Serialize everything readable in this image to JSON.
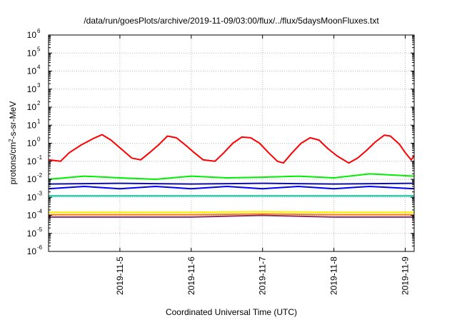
{
  "chart_data": {
    "type": "line",
    "title": "/data/run/goesPlots/archive/2019-11-09/03:00/flux/../flux/5daysMoonFluxes.txt",
    "xlabel": "Coordinated Universal Time (UTC)",
    "ylabel": "protons/cm2-s-sr-MeV",
    "yscale": "log",
    "ylim": [
      1e-06,
      1000000.0
    ],
    "xlim": [
      "2019-11-04T00:00",
      "2019-11-09T03:00"
    ],
    "y_ticks": [
      "10-6",
      "10-5",
      "10-4",
      "10-3",
      "10-2",
      "10-1",
      "100",
      "101",
      "102",
      "103",
      "104",
      "105",
      "106"
    ],
    "x_ticks": [
      "2019-11-5",
      "2019-11-6",
      "2019-11-7",
      "2019-11-8",
      "2019-11-9"
    ],
    "grid": true,
    "series": [
      {
        "color": "#ff0000",
        "values": [
          {
            "x": "2019-11-04T00:00",
            "y": 0.12
          },
          {
            "x": "2019-11-04T04:00",
            "y": 0.1
          },
          {
            "x": "2019-11-04T07:00",
            "y": 0.3
          },
          {
            "x": "2019-11-04T11:00",
            "y": 0.8
          },
          {
            "x": "2019-11-04T15:00",
            "y": 1.8
          },
          {
            "x": "2019-11-04T18:00",
            "y": 3.0
          },
          {
            "x": "2019-11-04T21:00",
            "y": 1.5
          },
          {
            "x": "2019-11-05T01:00",
            "y": 0.4
          },
          {
            "x": "2019-11-05T04:00",
            "y": 0.15
          },
          {
            "x": "2019-11-05T07:00",
            "y": 0.12
          },
          {
            "x": "2019-11-05T10:00",
            "y": 0.3
          },
          {
            "x": "2019-11-05T13:00",
            "y": 0.8
          },
          {
            "x": "2019-11-05T16:00",
            "y": 2.5
          },
          {
            "x": "2019-11-05T19:00",
            "y": 2.0
          },
          {
            "x": "2019-11-05T22:00",
            "y": 0.8
          },
          {
            "x": "2019-11-06T01:00",
            "y": 0.3
          },
          {
            "x": "2019-11-06T04:00",
            "y": 0.12
          },
          {
            "x": "2019-11-06T08:00",
            "y": 0.1
          },
          {
            "x": "2019-11-06T11:00",
            "y": 0.3
          },
          {
            "x": "2019-11-06T14:00",
            "y": 1.0
          },
          {
            "x": "2019-11-06T17:00",
            "y": 2.2
          },
          {
            "x": "2019-11-06T20:00",
            "y": 2.0
          },
          {
            "x": "2019-11-06T23:00",
            "y": 1.0
          },
          {
            "x": "2019-11-07T02:00",
            "y": 0.3
          },
          {
            "x": "2019-11-07T05:00",
            "y": 0.1
          },
          {
            "x": "2019-11-07T07:00",
            "y": 0.08
          },
          {
            "x": "2019-11-07T10:00",
            "y": 0.3
          },
          {
            "x": "2019-11-07T13:00",
            "y": 1.0
          },
          {
            "x": "2019-11-07T16:00",
            "y": 2.0
          },
          {
            "x": "2019-11-07T19:00",
            "y": 1.5
          },
          {
            "x": "2019-11-07T22:00",
            "y": 0.5
          },
          {
            "x": "2019-11-08T01:00",
            "y": 0.2
          },
          {
            "x": "2019-11-08T05:00",
            "y": 0.08
          },
          {
            "x": "2019-11-08T08:00",
            "y": 0.15
          },
          {
            "x": "2019-11-08T11:00",
            "y": 0.4
          },
          {
            "x": "2019-11-08T14:00",
            "y": 1.2
          },
          {
            "x": "2019-11-08T17:00",
            "y": 2.8
          },
          {
            "x": "2019-11-08T19:00",
            "y": 2.5
          },
          {
            "x": "2019-11-08T22:00",
            "y": 0.9
          },
          {
            "x": "2019-11-09T00:00",
            "y": 0.3
          },
          {
            "x": "2019-11-09T02:00",
            "y": 0.12
          },
          {
            "x": "2019-11-09T03:00",
            "y": 0.2
          }
        ]
      },
      {
        "color": "#00ee00",
        "values": [
          {
            "x": "2019-11-04T00:00",
            "y": 0.01
          },
          {
            "x": "2019-11-04T12:00",
            "y": 0.015
          },
          {
            "x": "2019-11-05T00:00",
            "y": 0.012
          },
          {
            "x": "2019-11-05T12:00",
            "y": 0.01
          },
          {
            "x": "2019-11-06T00:00",
            "y": 0.015
          },
          {
            "x": "2019-11-06T12:00",
            "y": 0.012
          },
          {
            "x": "2019-11-07T00:00",
            "y": 0.013
          },
          {
            "x": "2019-11-07T12:00",
            "y": 0.015
          },
          {
            "x": "2019-11-08T00:00",
            "y": 0.012
          },
          {
            "x": "2019-11-08T12:00",
            "y": 0.02
          },
          {
            "x": "2019-11-09T03:00",
            "y": 0.015
          }
        ]
      },
      {
        "color": "#0000ff",
        "values": [
          {
            "x": "2019-11-04T00:00",
            "y": 0.003
          },
          {
            "x": "2019-11-04T12:00",
            "y": 0.004
          },
          {
            "x": "2019-11-05T00:00",
            "y": 0.003
          },
          {
            "x": "2019-11-05T12:00",
            "y": 0.004
          },
          {
            "x": "2019-11-06T00:00",
            "y": 0.003
          },
          {
            "x": "2019-11-06T12:00",
            "y": 0.004
          },
          {
            "x": "2019-11-07T00:00",
            "y": 0.003
          },
          {
            "x": "2019-11-07T12:00",
            "y": 0.004
          },
          {
            "x": "2019-11-08T00:00",
            "y": 0.003
          },
          {
            "x": "2019-11-08T12:00",
            "y": 0.004
          },
          {
            "x": "2019-11-09T03:00",
            "y": 0.003
          }
        ]
      },
      {
        "color": "#1010a0",
        "values": [
          {
            "x": "2019-11-04T00:00",
            "y": 0.0055
          },
          {
            "x": "2019-11-05T00:00",
            "y": 0.006
          },
          {
            "x": "2019-11-06T00:00",
            "y": 0.0055
          },
          {
            "x": "2019-11-07T00:00",
            "y": 0.006
          },
          {
            "x": "2019-11-08T00:00",
            "y": 0.0055
          },
          {
            "x": "2019-11-09T03:00",
            "y": 0.006
          }
        ]
      },
      {
        "color": "#00c8a0",
        "values": [
          {
            "x": "2019-11-04T00:00",
            "y": 0.0012
          },
          {
            "x": "2019-11-05T00:00",
            "y": 0.0012
          },
          {
            "x": "2019-11-06T00:00",
            "y": 0.0012
          },
          {
            "x": "2019-11-07T00:00",
            "y": 0.0012
          },
          {
            "x": "2019-11-08T00:00",
            "y": 0.0012
          },
          {
            "x": "2019-11-09T03:00",
            "y": 0.0012
          }
        ]
      },
      {
        "color": "#ffee00",
        "values": [
          {
            "x": "2019-11-04T00:00",
            "y": 0.00015
          },
          {
            "x": "2019-11-05T00:00",
            "y": 0.00015
          },
          {
            "x": "2019-11-06T00:00",
            "y": 0.00015
          },
          {
            "x": "2019-11-07T00:00",
            "y": 0.00016
          },
          {
            "x": "2019-11-08T00:00",
            "y": 0.00015
          },
          {
            "x": "2019-11-09T03:00",
            "y": 0.00015
          }
        ]
      },
      {
        "color": "#ff8000",
        "values": [
          {
            "x": "2019-11-04T00:00",
            "y": 0.00011
          },
          {
            "x": "2019-11-05T00:00",
            "y": 0.00011
          },
          {
            "x": "2019-11-06T00:00",
            "y": 0.00011
          },
          {
            "x": "2019-11-07T00:00",
            "y": 0.00012
          },
          {
            "x": "2019-11-08T00:00",
            "y": 0.00011
          },
          {
            "x": "2019-11-09T03:00",
            "y": 0.00011
          }
        ]
      },
      {
        "color": "#8b2e6e",
        "values": [
          {
            "x": "2019-11-04T00:00",
            "y": 8e-05
          },
          {
            "x": "2019-11-05T00:00",
            "y": 8e-05
          },
          {
            "x": "2019-11-06T00:00",
            "y": 8e-05
          },
          {
            "x": "2019-11-07T00:00",
            "y": 0.0001
          },
          {
            "x": "2019-11-08T00:00",
            "y": 8e-05
          },
          {
            "x": "2019-11-09T03:00",
            "y": 8e-05
          }
        ]
      }
    ]
  }
}
